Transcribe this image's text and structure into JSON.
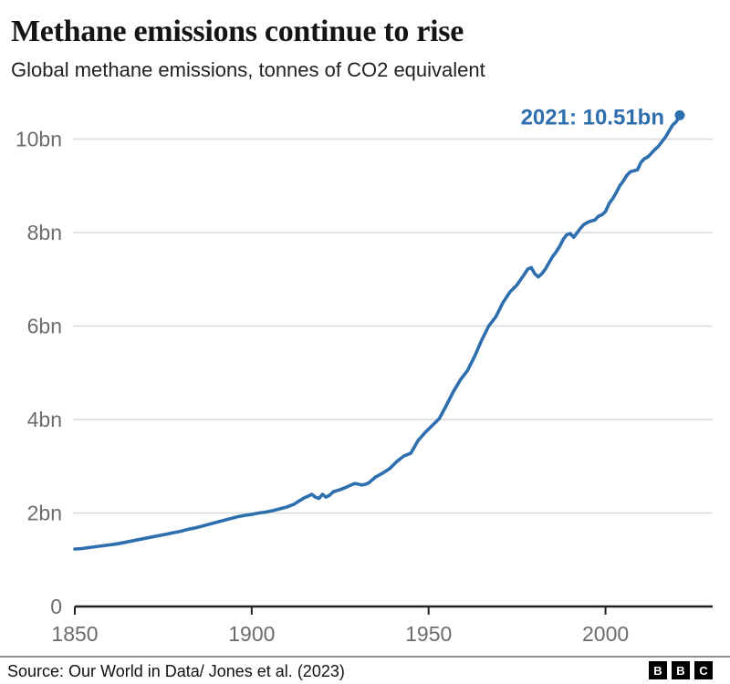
{
  "header": {
    "title": "Methane emissions continue to rise",
    "subtitle": "Global methane emissions, tonnes of CO2 equivalent"
  },
  "footer": {
    "source": "Source: Our World in Data/ Jones et al. (2023)",
    "logo_letters": [
      "B",
      "B",
      "C"
    ]
  },
  "colors": {
    "line": "#2d6eae",
    "annotation": "#2d6eae",
    "grid": "#d9d9d9",
    "axis": "#222222",
    "tick_label": "#6b6c70",
    "title": "#141414",
    "divider": "#8f8f8f"
  },
  "chart_data": {
    "type": "line",
    "title": "Methane emissions continue to rise",
    "subtitle": "Global methane emissions, tonnes of CO2 equivalent",
    "xlabel": "",
    "ylabel": "tonnes of CO2 equivalent",
    "xlim": [
      1850,
      2030
    ],
    "ylim": [
      0,
      10.8
    ],
    "grid": "horizontal",
    "legend": "none",
    "yticks": [
      {
        "v": 0,
        "label": "0"
      },
      {
        "v": 2,
        "label": "2bn"
      },
      {
        "v": 4,
        "label": "4bn"
      },
      {
        "v": 6,
        "label": "6bn"
      },
      {
        "v": 8,
        "label": "8bn"
      },
      {
        "v": 10,
        "label": "10bn"
      }
    ],
    "xticks": [
      {
        "v": 1850,
        "label": "1850"
      },
      {
        "v": 1900,
        "label": "1900"
      },
      {
        "v": 1950,
        "label": "1950"
      },
      {
        "v": 2000,
        "label": "2000"
      }
    ],
    "x": [
      1850,
      1852,
      1854,
      1856,
      1858,
      1860,
      1862,
      1864,
      1866,
      1868,
      1870,
      1872,
      1874,
      1876,
      1878,
      1880,
      1882,
      1884,
      1886,
      1888,
      1890,
      1892,
      1894,
      1896,
      1898,
      1900,
      1902,
      1904,
      1906,
      1908,
      1910,
      1912,
      1913,
      1915,
      1916,
      1917,
      1918,
      1919,
      1920,
      1921,
      1922,
      1923,
      1925,
      1927,
      1929,
      1930,
      1931,
      1932,
      1933,
      1935,
      1937,
      1939,
      1941,
      1943,
      1944,
      1945,
      1947,
      1949,
      1951,
      1953,
      1955,
      1957,
      1959,
      1961,
      1963,
      1965,
      1967,
      1969,
      1971,
      1973,
      1975,
      1977,
      1978,
      1979,
      1980,
      1981,
      1982,
      1983,
      1984,
      1985,
      1986,
      1987,
      1988,
      1989,
      1990,
      1991,
      1992,
      1993,
      1994,
      1995,
      1996,
      1997,
      1998,
      1999,
      2000,
      2001,
      2002,
      2003,
      2004,
      2005,
      2006,
      2007,
      2008,
      2009,
      2010,
      2011,
      2012,
      2013,
      2014,
      2015,
      2016,
      2017,
      2018,
      2019,
      2020,
      2021
    ],
    "series": [
      {
        "name": "Global methane emissions (bn tonnes CO2 equivalent)",
        "values": [
          1.23,
          1.24,
          1.26,
          1.28,
          1.3,
          1.32,
          1.34,
          1.37,
          1.4,
          1.43,
          1.46,
          1.49,
          1.52,
          1.55,
          1.58,
          1.61,
          1.65,
          1.68,
          1.72,
          1.76,
          1.8,
          1.84,
          1.88,
          1.92,
          1.95,
          1.97,
          2.0,
          2.02,
          2.05,
          2.09,
          2.13,
          2.19,
          2.24,
          2.33,
          2.36,
          2.4,
          2.34,
          2.31,
          2.4,
          2.34,
          2.38,
          2.45,
          2.5,
          2.56,
          2.63,
          2.62,
          2.6,
          2.61,
          2.64,
          2.77,
          2.85,
          2.95,
          3.1,
          3.22,
          3.25,
          3.28,
          3.55,
          3.72,
          3.87,
          4.02,
          4.3,
          4.6,
          4.85,
          5.05,
          5.35,
          5.7,
          6.0,
          6.2,
          6.5,
          6.73,
          6.88,
          7.1,
          7.22,
          7.25,
          7.12,
          7.05,
          7.12,
          7.22,
          7.35,
          7.48,
          7.58,
          7.7,
          7.85,
          7.95,
          7.98,
          7.9,
          8.0,
          8.1,
          8.18,
          8.22,
          8.25,
          8.27,
          8.35,
          8.38,
          8.45,
          8.62,
          8.72,
          8.85,
          9.0,
          9.1,
          9.22,
          9.3,
          9.32,
          9.34,
          9.5,
          9.58,
          9.62,
          9.7,
          9.78,
          9.85,
          9.95,
          10.05,
          10.18,
          10.3,
          10.37,
          10.51
        ]
      }
    ],
    "end_point": {
      "year": 2021,
      "value": 10.51,
      "label": "2021: 10.51bn"
    }
  }
}
